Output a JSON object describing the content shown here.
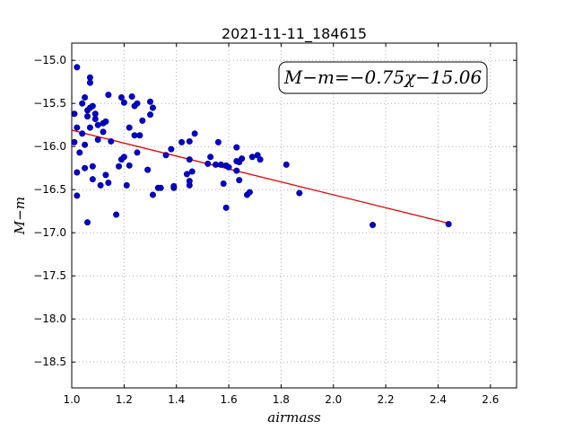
{
  "chart_data": {
    "type": "scatter",
    "title": "2021-11-11_184615",
    "xlabel": "airmass",
    "ylabel": "M−m",
    "xlim": [
      1.0,
      2.7
    ],
    "ylim": [
      -18.8,
      -14.8
    ],
    "xticks": [
      1.0,
      1.2,
      1.4,
      1.6,
      1.8,
      2.0,
      2.2,
      2.4,
      2.6
    ],
    "yticks": [
      -15.0,
      -15.5,
      -16.0,
      -16.5,
      -17.0,
      -17.5,
      -18.0,
      -18.5
    ],
    "grid": true,
    "annotation": "M−m=−0.75χ−15.06",
    "colors": {
      "points": "#0000cc",
      "points_edge": "#00007a",
      "fit_line": "#dd0000",
      "grid": "#b0b0b0"
    },
    "series": [
      {
        "type": "scatter",
        "x": [
          1.01,
          1.01,
          1.02,
          1.02,
          1.02,
          1.02,
          1.03,
          1.04,
          1.04,
          1.05,
          1.05,
          1.05,
          1.06,
          1.06,
          1.06,
          1.07,
          1.07,
          1.07,
          1.07,
          1.08,
          1.08,
          1.08,
          1.09,
          1.09,
          1.1,
          1.1,
          1.11,
          1.12,
          1.12,
          1.13,
          1.13,
          1.14,
          1.14,
          1.15,
          1.17,
          1.18,
          1.19,
          1.19,
          1.2,
          1.2,
          1.21,
          1.22,
          1.22,
          1.23,
          1.24,
          1.24,
          1.25,
          1.25,
          1.26,
          1.27,
          1.29,
          1.3,
          1.3,
          1.31,
          1.31,
          1.33,
          1.34,
          1.36,
          1.38,
          1.39,
          1.39,
          1.42,
          1.44,
          1.45,
          1.45,
          1.45,
          1.45,
          1.46,
          1.47,
          1.52,
          1.53,
          1.55,
          1.56,
          1.57,
          1.58,
          1.59,
          1.59,
          1.6,
          1.63,
          1.63,
          1.63,
          1.64,
          1.64,
          1.65,
          1.67,
          1.68,
          1.69,
          1.71,
          1.72,
          1.82,
          1.87,
          2.15,
          2.44
        ],
        "y": [
          -15.62,
          -15.95,
          -15.08,
          -15.78,
          -16.3,
          -16.57,
          -16.07,
          -15.5,
          -15.85,
          -15.43,
          -16.25,
          -15.98,
          -15.58,
          -16.88,
          -15.65,
          -15.55,
          -15.78,
          -15.2,
          -15.26,
          -16.38,
          -16.23,
          -15.53,
          -15.62,
          -15.68,
          -15.75,
          -15.92,
          -16.45,
          -15.73,
          -15.83,
          -16.33,
          -15.71,
          -15.4,
          -16.42,
          -15.94,
          -16.79,
          -16.23,
          -16.15,
          -15.43,
          -16.12,
          -15.49,
          -16.45,
          -15.78,
          -16.22,
          -15.42,
          -15.53,
          -15.87,
          -16.07,
          -15.5,
          -15.87,
          -15.7,
          -16.27,
          -15.48,
          -15.63,
          -15.55,
          -16.56,
          -16.48,
          -16.48,
          -16.1,
          -16.03,
          -16.48,
          -16.46,
          -15.95,
          -16.32,
          -16.15,
          -15.94,
          -16.45,
          -16.4,
          -16.29,
          -15.85,
          -16.2,
          -16.12,
          -16.21,
          -15.95,
          -16.21,
          -16.43,
          -16.71,
          -16.22,
          -16.24,
          -16.01,
          -16.17,
          -16.28,
          -16.39,
          -16.18,
          -16.14,
          -16.56,
          -16.53,
          -16.12,
          -16.1,
          -16.15,
          -16.21,
          -16.54,
          -16.91,
          -16.9
        ]
      },
      {
        "type": "line",
        "x": [
          1.0,
          2.44
        ],
        "y": [
          -15.81,
          -16.89
        ]
      }
    ]
  }
}
